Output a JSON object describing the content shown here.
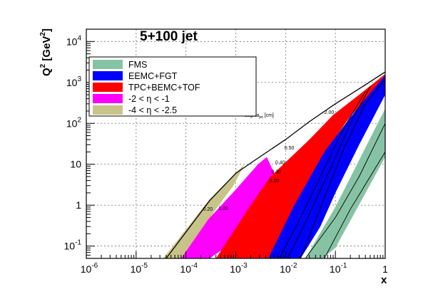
{
  "chart_data": {
    "type": "area",
    "title": "5+100 jet",
    "xlabel": "x",
    "ylabel_main": "Q",
    "ylabel_sup1": "2",
    "ylabel_unit_open": " [GeV",
    "ylabel_sup2": "2",
    "ylabel_unit_close": "]",
    "x_scale": "log",
    "y_scale": "log",
    "xlim": [
      1e-06,
      1
    ],
    "ylim": [
      0.05,
      20000
    ],
    "grid": true,
    "legend_position": "top-left",
    "x_tick_labels": [
      {
        "base": "10",
        "exp": "-6",
        "value": 1e-06
      },
      {
        "base": "10",
        "exp": "-5",
        "value": 1e-05
      },
      {
        "base": "10",
        "exp": "-4",
        "value": 0.0001
      },
      {
        "base": "10",
        "exp": "-3",
        "value": 0.001
      },
      {
        "base": "10",
        "exp": "-2",
        "value": 0.01
      },
      {
        "base": "10",
        "exp": "-1",
        "value": 0.1
      },
      {
        "base": "1",
        "exp": "",
        "value": 1
      }
    ],
    "y_tick_labels": [
      {
        "base": "10",
        "exp": "-1",
        "value": 0.1
      },
      {
        "base": "1",
        "exp": "",
        "value": 1
      },
      {
        "base": "10",
        "exp": "",
        "value": 10
      },
      {
        "base": "10",
        "exp": "2",
        "value": 100
      },
      {
        "base": "10",
        "exp": "3",
        "value": 1000
      },
      {
        "base": "10",
        "exp": "4",
        "value": 10000
      }
    ],
    "series": [
      {
        "name": "FMS",
        "color": "#86c3a4",
        "upper": [
          [
            0.025,
            0.05
          ],
          [
            0.1,
            0.9
          ],
          [
            1,
            230
          ]
        ],
        "lower": [
          [
            1,
            15
          ],
          [
            0.1,
            0.09
          ],
          [
            0.055,
            0.05
          ]
        ]
      },
      {
        "name": "-4 < η < -2.5",
        "color": "#c8c389",
        "upper": [
          [
            3.5e-05,
            0.05
          ],
          [
            0.0003,
            1.4
          ],
          [
            0.0015,
            10
          ]
        ],
        "lower": [
          [
            0.0009,
            3
          ],
          [
            0.0004,
            0.8
          ],
          [
            9e-05,
            0.05
          ]
        ]
      },
      {
        "name": "-2 < η < -1",
        "color": "#ff00ff",
        "upper": [
          [
            8e-05,
            0.05
          ],
          [
            0.00028,
            0.45
          ],
          [
            0.001,
            2.4
          ],
          [
            0.0028,
            10
          ],
          [
            0.0042,
            15
          ]
        ],
        "lower": [
          [
            0.009,
            2
          ],
          [
            0.003,
            0.35
          ],
          [
            0.0003,
            0.05
          ]
        ]
      },
      {
        "name": "TPC+BEMC+TOF",
        "color": "#ff0000",
        "upper": [
          [
            0.0004,
            0.05
          ],
          [
            0.002,
            1
          ],
          [
            0.005,
            5
          ],
          [
            0.03,
            40
          ],
          [
            0.09,
            160
          ],
          [
            0.3,
            500
          ],
          [
            1,
            1600
          ]
        ],
        "lower": [
          [
            1,
            1200
          ],
          [
            0.2,
            150
          ],
          [
            0.08,
            30
          ],
          [
            0.025,
            3
          ],
          [
            0.012,
            0.5
          ],
          [
            0.0045,
            0.05
          ]
        ]
      },
      {
        "name": "EEMC+FGT",
        "color": "#0000ff",
        "upper": [
          [
            0.0045,
            0.05
          ],
          [
            0.015,
            1
          ],
          [
            0.06,
            20
          ],
          [
            0.25,
            200
          ],
          [
            1,
            1500
          ]
        ],
        "lower": [
          [
            1,
            500
          ],
          [
            0.3,
            30
          ],
          [
            0.1,
            2
          ],
          [
            0.05,
            0.3
          ],
          [
            0.02,
            0.05
          ]
        ]
      }
    ],
    "kinematic_limit": [
      [
        4e-05,
        0.05
      ],
      [
        0.0003,
        1.3
      ],
      [
        0.001,
        6
      ],
      [
        0.003,
        15
      ],
      [
        0.01,
        40
      ],
      [
        0.03,
        110
      ],
      [
        0.1,
        300
      ],
      [
        0.3,
        700
      ],
      [
        1,
        1800
      ]
    ],
    "extra_curves": [
      [
        [
          0.025,
          0.05
        ],
        [
          0.1,
          0.5
        ],
        [
          0.3,
          5
        ],
        [
          1,
          100
        ]
      ],
      [
        [
          0.06,
          0.05
        ],
        [
          0.2,
          0.8
        ],
        [
          1,
          20
        ]
      ],
      [
        [
          0.0075,
          0.05
        ],
        [
          0.02,
          0.5
        ],
        [
          0.05,
          5
        ],
        [
          0.15,
          80
        ],
        [
          0.4,
          600
        ]
      ],
      [
        [
          0.011,
          0.05
        ],
        [
          0.03,
          0.6
        ],
        [
          0.08,
          8
        ],
        [
          0.2,
          100
        ],
        [
          0.5,
          800
        ]
      ],
      [
        [
          0.02,
          0.05
        ],
        [
          0.06,
          1.5
        ],
        [
          0.15,
          25
        ],
        [
          0.4,
          300
        ],
        [
          1,
          1200
        ]
      ]
    ],
    "contour_labels": [
      {
        "text": "2.00",
        "x": 0.06,
        "y": 170
      },
      {
        "text": "0.50",
        "x": 0.0095,
        "y": 23
      },
      {
        "text": "0.40",
        "x": 0.0062,
        "y": 10
      },
      {
        "text": "0.30",
        "x": 0.0052,
        "y": 6
      },
      {
        "text": "0.20",
        "x": 0.0047,
        "y": 3.6
      },
      {
        "text": "0.20",
        "x": 0.00022,
        "y": 0.73
      },
      {
        "text": "1.00",
        "x": 0.00045,
        "y": 0.76
      }
    ],
    "annotation": {
      "main": "sagitta",
      "sub": "jet",
      "tail": " [cm]",
      "x": 0.0015,
      "y": 145
    }
  },
  "colors": {
    "frame": "#000000",
    "grid": "#6e6e6e",
    "legend_border": "#000000",
    "background": "#ffffff"
  }
}
